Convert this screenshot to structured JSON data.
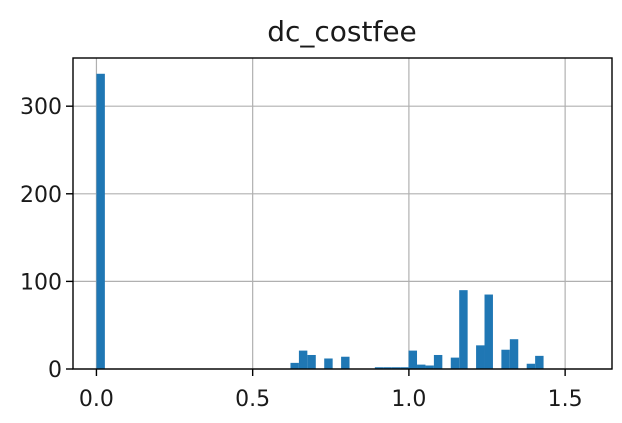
{
  "chart_data": {
    "type": "bar",
    "title": "dc_costfee",
    "xlabel": "",
    "ylabel": "",
    "xlim": [
      -0.075,
      1.65
    ],
    "ylim": [
      0,
      355
    ],
    "xticks": [
      0.0,
      0.5,
      1.0,
      1.5
    ],
    "xtick_labels": [
      "0.0",
      "0.5",
      "1.0",
      "1.5"
    ],
    "yticks": [
      0,
      100,
      200,
      300
    ],
    "ytick_labels": [
      "0",
      "100",
      "200",
      "300"
    ],
    "grid": true,
    "bar_color": "#1f77b4",
    "bin_width": 0.027,
    "bins": [
      {
        "x": 0.0,
        "value": 337
      },
      {
        "x": 0.621,
        "value": 7
      },
      {
        "x": 0.648,
        "value": 21
      },
      {
        "x": 0.675,
        "value": 16
      },
      {
        "x": 0.729,
        "value": 12
      },
      {
        "x": 0.783,
        "value": 14
      },
      {
        "x": 0.891,
        "value": 2
      },
      {
        "x": 0.918,
        "value": 2
      },
      {
        "x": 0.945,
        "value": 2
      },
      {
        "x": 0.972,
        "value": 2
      },
      {
        "x": 0.999,
        "value": 21
      },
      {
        "x": 1.026,
        "value": 5
      },
      {
        "x": 1.053,
        "value": 4
      },
      {
        "x": 1.08,
        "value": 16
      },
      {
        "x": 1.134,
        "value": 13
      },
      {
        "x": 1.161,
        "value": 90
      },
      {
        "x": 1.215,
        "value": 27
      },
      {
        "x": 1.242,
        "value": 85
      },
      {
        "x": 1.296,
        "value": 22
      },
      {
        "x": 1.323,
        "value": 34
      },
      {
        "x": 1.377,
        "value": 6
      },
      {
        "x": 1.404,
        "value": 15
      }
    ]
  }
}
